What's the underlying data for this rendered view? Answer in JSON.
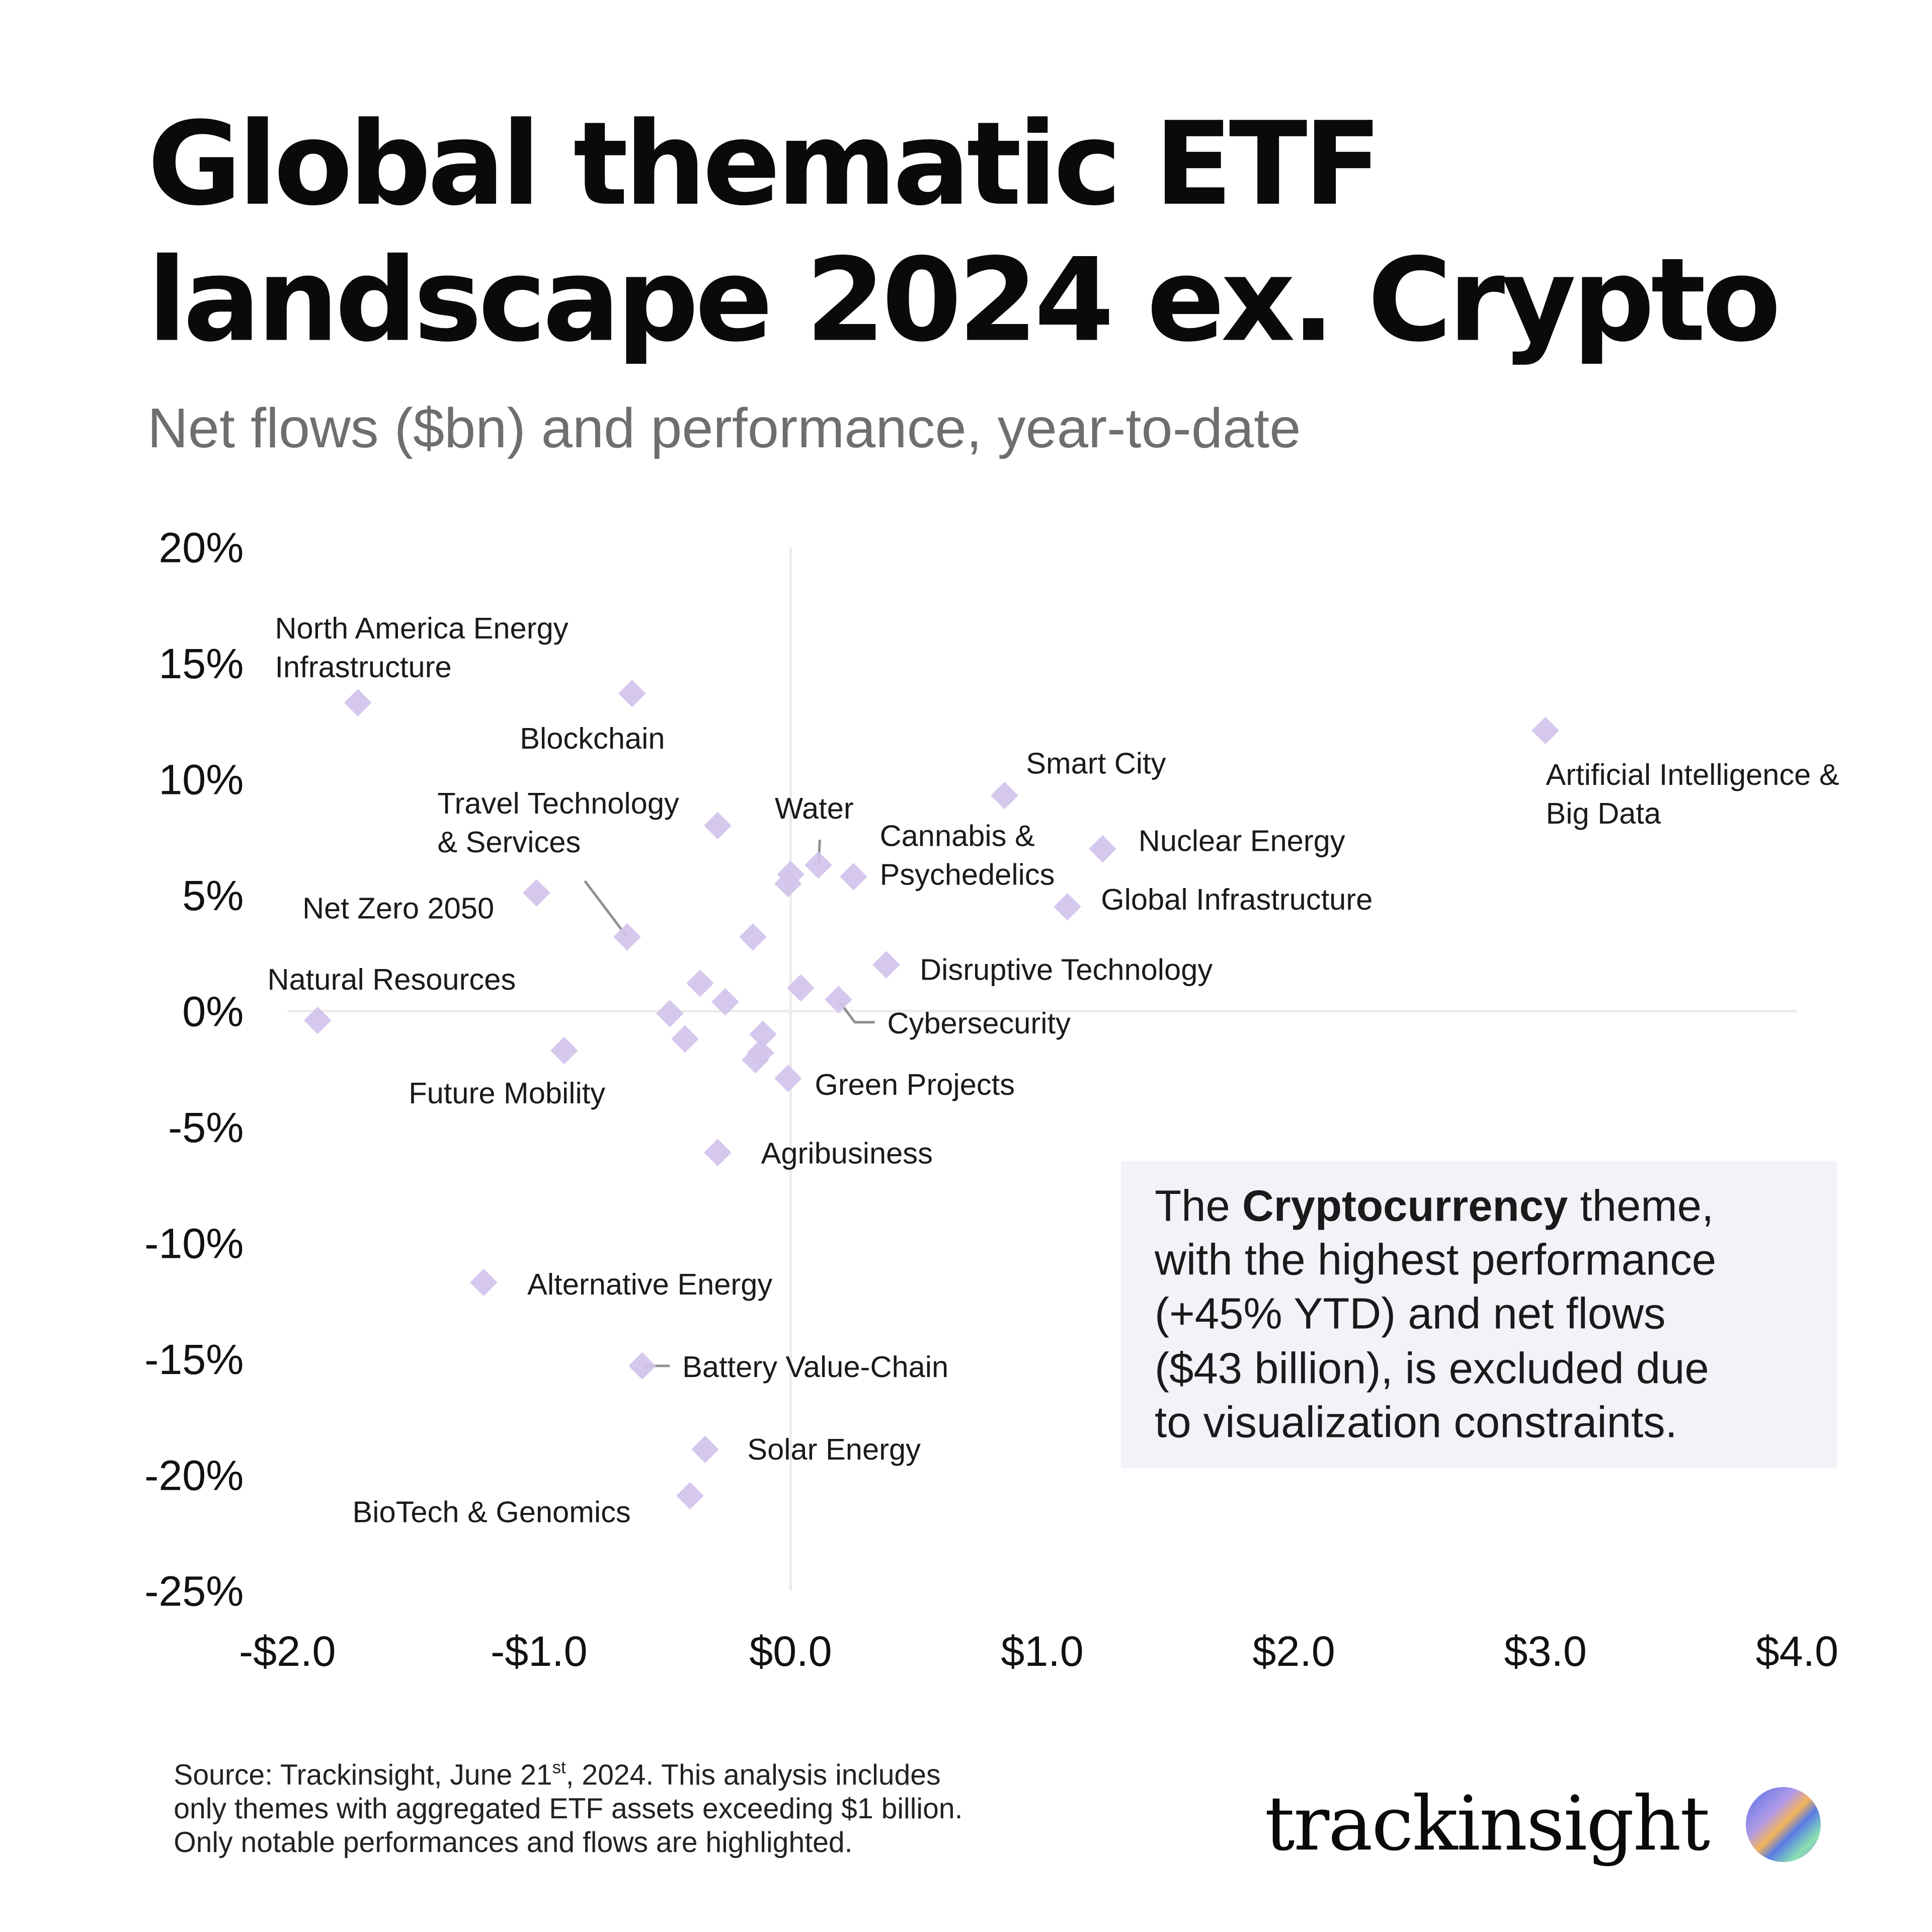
{
  "header": {
    "title_line1": "Global thematic ETF",
    "title_line2": "landscape 2024 ex. Crypto",
    "subtitle": "Net flows ($bn) and performance, year-to-date"
  },
  "chart_data": {
    "type": "scatter",
    "title": "Global thematic ETF landscape 2024 ex. Crypto",
    "xlabel": "Net flows ($bn)",
    "ylabel": "Performance YTD (%)",
    "xlim": [
      -2.0,
      4.0
    ],
    "ylim": [
      -25,
      20
    ],
    "x_ticks": [
      "-$2.0",
      "-$1.0",
      "$0.0",
      "$1.0",
      "$2.0",
      "$3.0",
      "$4.0"
    ],
    "y_ticks": [
      "20%",
      "15%",
      "10%",
      "5%",
      "0%",
      "-5%",
      "-10%",
      "-15%",
      "-20%",
      "-25%"
    ],
    "marker_color": "#d3c3ec",
    "points": [
      {
        "name": "North America Energy Infrastructure",
        "label_lines": [
          "North America Energy",
          "Infrastructure"
        ],
        "x": -1.72,
        "y": 13.3
      },
      {
        "name": "Blockchain",
        "label_lines": [
          "Blockchain"
        ],
        "x": -0.63,
        "y": 13.7
      },
      {
        "name": "Artificial Intelligence & Big Data",
        "label_lines": [
          "Artificial Intelligence &",
          "Big Data"
        ],
        "x": 3.0,
        "y": 12.1
      },
      {
        "name": "Smart City",
        "label_lines": [
          "Smart City"
        ],
        "x": 0.85,
        "y": 9.3
      },
      {
        "name": "",
        "label_lines": [],
        "x": -0.29,
        "y": 8.0
      },
      {
        "name": "Travel Technology & Services",
        "label_lines": [
          "Travel Technology",
          "& Services"
        ],
        "x": -0.65,
        "y": 3.2
      },
      {
        "name": "Water",
        "label_lines": [
          "Water"
        ],
        "x": 0.11,
        "y": 6.3
      },
      {
        "name": "Cannabis & Psychedelics",
        "label_lines": [
          "Cannabis &",
          "Psychedelics"
        ],
        "x": 0.25,
        "y": 5.8
      },
      {
        "name": "",
        "label_lines": [],
        "x": 0.0,
        "y": 5.9
      },
      {
        "name": "",
        "label_lines": [],
        "x": -0.01,
        "y": 5.5
      },
      {
        "name": "Nuclear Energy",
        "label_lines": [
          "Nuclear Energy"
        ],
        "x": 1.24,
        "y": 7.0
      },
      {
        "name": "Net Zero 2050",
        "label_lines": [
          "Net Zero 2050"
        ],
        "x": -1.01,
        "y": 5.1
      },
      {
        "name": "Global Infrastructure",
        "label_lines": [
          "Global Infrastructure"
        ],
        "x": 1.1,
        "y": 4.5
      },
      {
        "name": "",
        "label_lines": [],
        "x": -0.15,
        "y": 3.2
      },
      {
        "name": "Disruptive Technology",
        "label_lines": [
          "Disruptive Technology"
        ],
        "x": 0.38,
        "y": 2.0
      },
      {
        "name": "Natural Resources",
        "label_lines": [
          "Natural Resources"
        ],
        "x": -1.88,
        "y": -0.4
      },
      {
        "name": "",
        "label_lines": [],
        "x": -0.36,
        "y": 1.2
      },
      {
        "name": "",
        "label_lines": [],
        "x": 0.04,
        "y": 1.0
      },
      {
        "name": "Cybersecurity",
        "label_lines": [
          "Cybersecurity"
        ],
        "x": 0.19,
        "y": 0.5
      },
      {
        "name": "",
        "label_lines": [],
        "x": -0.26,
        "y": 0.4
      },
      {
        "name": "",
        "label_lines": [],
        "x": -0.48,
        "y": -0.1
      },
      {
        "name": "",
        "label_lines": [],
        "x": -0.42,
        "y": -1.2
      },
      {
        "name": "",
        "label_lines": [],
        "x": -0.11,
        "y": -1.0
      },
      {
        "name": "",
        "label_lines": [],
        "x": -0.12,
        "y": -1.8
      },
      {
        "name": "",
        "label_lines": [],
        "x": -0.14,
        "y": -2.1
      },
      {
        "name": "Future Mobility",
        "label_lines": [
          "Future Mobility"
        ],
        "x": -0.9,
        "y": -1.7
      },
      {
        "name": "Green Projects",
        "label_lines": [
          "Green Projects"
        ],
        "x": -0.01,
        "y": -2.9
      },
      {
        "name": "Agribusiness",
        "label_lines": [
          "Agribusiness"
        ],
        "x": -0.29,
        "y": -6.1
      },
      {
        "name": "Alternative Energy",
        "label_lines": [
          "Alternative Energy"
        ],
        "x": -1.22,
        "y": -11.7
      },
      {
        "name": "Battery Value-Chain",
        "label_lines": [
          "Battery Value-Chain"
        ],
        "x": -0.59,
        "y": -15.3
      },
      {
        "name": "Solar Energy",
        "label_lines": [
          "Solar Energy"
        ],
        "x": -0.34,
        "y": -18.9
      },
      {
        "name": "BioTech & Genomics",
        "label_lines": [
          "BioTech & Genomics"
        ],
        "x": -0.4,
        "y": -20.9
      }
    ]
  },
  "annotation": {
    "line1_pre": "The ",
    "line1_bold": "Cryptocurrency",
    "line1_post": " theme,",
    "line2": "with the highest performance",
    "line3": "(+45% YTD) and net flows",
    "line4": "($43 billion), is excluded due",
    "line5": "to visualization constraints.",
    "background": "#f3f2f8"
  },
  "footer": {
    "line1_pre": "Source: Trackinsight, June 21",
    "line1_sup": "st",
    "line1_post": ", 2024. This analysis includes",
    "line2": "only themes with aggregated ETF assets exceeding $1 billion.",
    "line3": "Only notable performances and flows are highlighted.",
    "logo_text": "trackinsight"
  }
}
